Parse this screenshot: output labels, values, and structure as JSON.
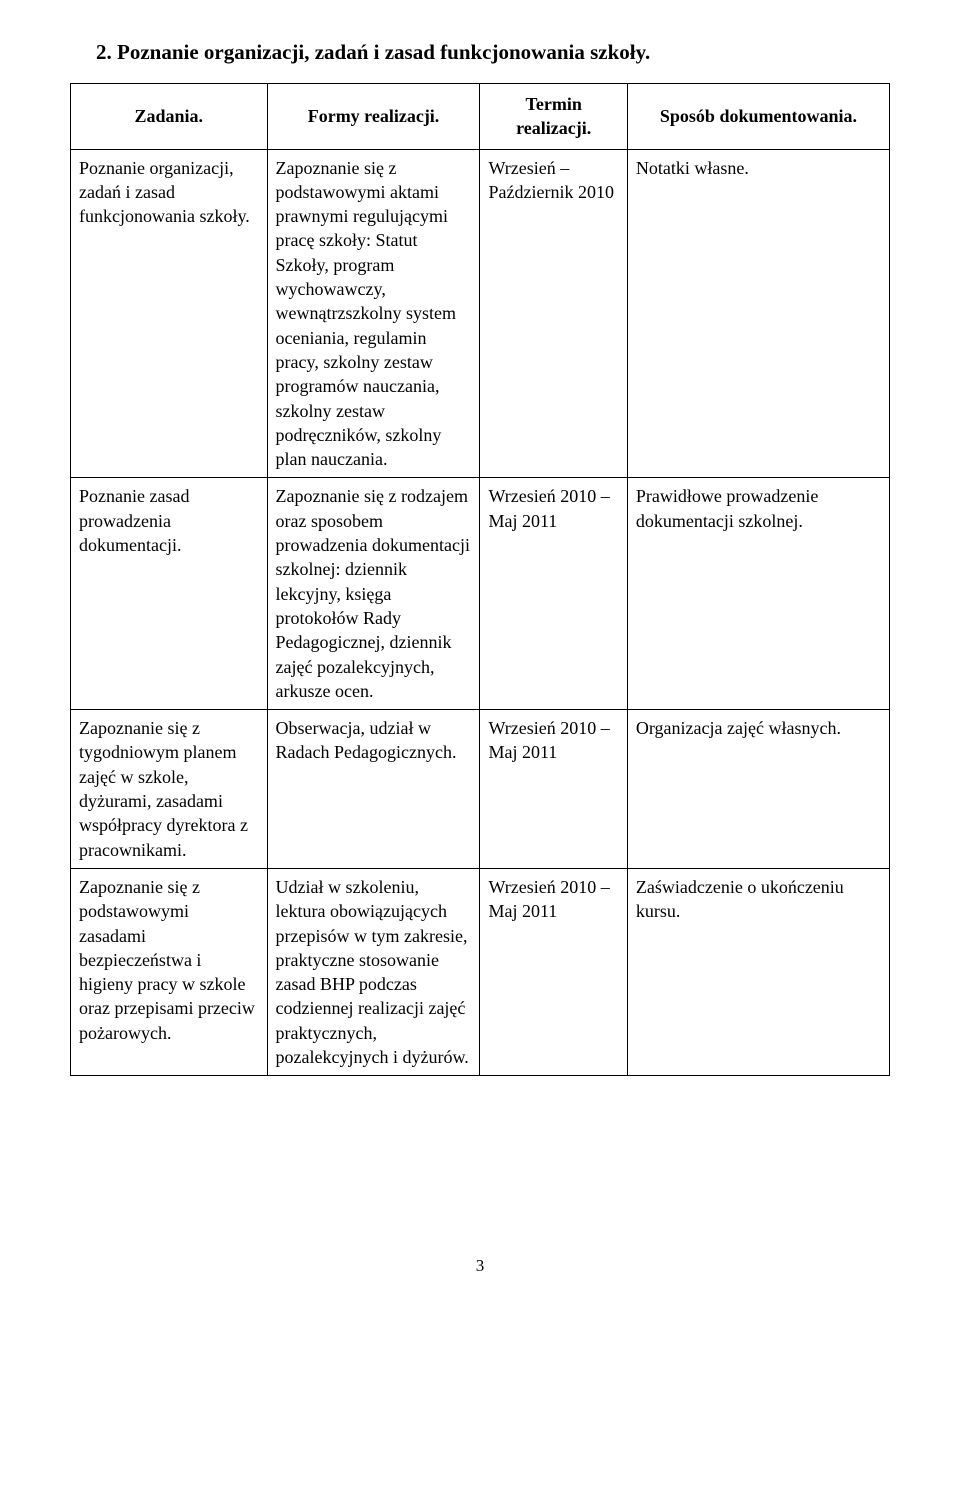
{
  "section": {
    "title": "2. Poznanie organizacji, zadań i zasad funkcjonowania szkoły."
  },
  "table": {
    "headers": {
      "col1": "Zadania.",
      "col2": "Formy realizacji.",
      "col3_line1": "Termin",
      "col3_line2": "realizacji.",
      "col4": "Sposób dokumentowania."
    },
    "rows": [
      {
        "zadania": "Poznanie organizacji, zadań i zasad funkcjonowania szkoły.",
        "formy": "Zapoznanie się z podstawowymi aktami prawnymi regulującymi pracę szkoły: Statut Szkoły, program wychowawczy, wewnątrzszkolny system oceniania, regulamin pracy, szkolny zestaw programów nauczania, szkolny zestaw podręczników, szkolny plan nauczania.",
        "termin": "Wrzesień – Październik 2010",
        "sposob": "Notatki własne."
      },
      {
        "zadania": "Poznanie zasad prowadzenia dokumentacji.",
        "formy": "Zapoznanie się z rodzajem oraz sposobem prowadzenia dokumentacji szkolnej: dziennik lekcyjny, księga protokołów Rady Pedagogicznej, dziennik zajęć pozalekcyjnych, arkusze ocen.",
        "termin": "Wrzesień 2010 – Maj 2011",
        "sposob": "Prawidłowe prowadzenie dokumentacji szkolnej."
      },
      {
        "zadania": "Zapoznanie się z tygodniowym planem zajęć w szkole, dyżurami, zasadami współpracy dyrektora z pracownikami.",
        "formy": "Obserwacja, udział w Radach Pedagogicznych.",
        "termin": "Wrzesień 2010 – Maj 2011",
        "sposob": "Organizacja zajęć własnych."
      },
      {
        "zadania": "Zapoznanie się z podstawowymi zasadami bezpieczeństwa i higieny pracy w szkole oraz przepisami przeciw pożarowych.",
        "formy": "Udział w szkoleniu, lektura obowiązujących przepisów w tym zakresie, praktyczne stosowanie zasad BHP podczas codziennej realizacji zajęć praktycznych, pozalekcyjnych i dyżurów.",
        "termin": "Wrzesień 2010 – Maj 2011",
        "sposob": "Zaświadczenie o ukończeniu kursu."
      }
    ]
  },
  "pageNumber": "3"
}
